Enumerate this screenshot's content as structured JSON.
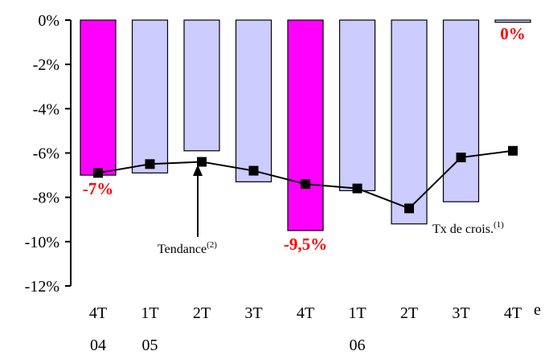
{
  "chart_data": {
    "type": "bar",
    "categories": [
      {
        "line1": "4T",
        "line2": "04"
      },
      {
        "line1": "1T",
        "line2": "05"
      },
      {
        "line1": "2T",
        "line2": ""
      },
      {
        "line1": "3T",
        "line2": ""
      },
      {
        "line1": "4T",
        "line2": ""
      },
      {
        "line1": "1T",
        "line2": "06"
      },
      {
        "line1": "2T",
        "line2": ""
      },
      {
        "line1": "3T",
        "line2": ""
      },
      {
        "line1": "4T",
        "line2": ""
      }
    ],
    "trailing_label": "e",
    "ylim": [
      -12,
      0
    ],
    "yticks": [
      0,
      -2,
      -4,
      -6,
      -8,
      -10,
      -12
    ],
    "ytick_labels": [
      "0%",
      "-2%",
      "-4%",
      "-6%",
      "-8%",
      "-10%",
      "-12%"
    ],
    "series": [
      {
        "name": "Tx de crois.",
        "kind": "bar",
        "values": [
          -7.0,
          -6.9,
          -5.9,
          -7.3,
          -9.5,
          -7.7,
          -9.2,
          -8.2,
          -0.1
        ],
        "colors": [
          "#ff00ff",
          "#ccccff",
          "#ccccff",
          "#ccccff",
          "#ff00ff",
          "#ccccff",
          "#ccccff",
          "#ccccff",
          "#ccccff"
        ]
      },
      {
        "name": "Tendance",
        "kind": "line",
        "values": [
          -6.9,
          -6.5,
          -6.4,
          -6.8,
          -7.4,
          -7.6,
          -8.5,
          -6.2,
          -5.9
        ],
        "color": "#000000"
      }
    ],
    "data_labels": [
      {
        "index": 0,
        "text": "-7%"
      },
      {
        "index": 4,
        "text": "-9,5%"
      },
      {
        "index": 8,
        "text": "0%"
      }
    ],
    "annotations": {
      "trend_label": "Tendance",
      "trend_sup": "(2)",
      "growth_label": "Tx de crois.",
      "growth_sup": "(1)"
    },
    "grid": false,
    "legend": "none"
  }
}
